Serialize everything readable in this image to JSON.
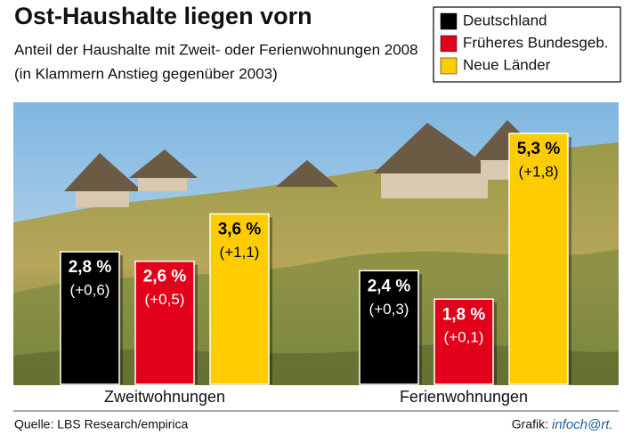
{
  "chart_data": {
    "type": "bar",
    "title": "Ost-Haushalte liegen vorn",
    "subtitle": "Anteil der Haushalte mit Zweit- oder Ferienwohnungen 2008",
    "note": "(in Klammern Anstieg gegenüber 2003)",
    "categories": [
      "Zweitwohnungen",
      "Ferienwohnungen"
    ],
    "series": [
      {
        "name": "Deutschland",
        "color": "#000000",
        "values": [
          2.8,
          2.4
        ],
        "value_labels": [
          "2,8 %",
          "2,4 %"
        ],
        "change_labels": [
          "(+0,6)",
          "(+0,3)"
        ]
      },
      {
        "name": "Früheres Bundesgeb.",
        "color": "#e2001a",
        "values": [
          2.6,
          1.8
        ],
        "value_labels": [
          "2,6 %",
          "1,8 %"
        ],
        "change_labels": [
          "(+0,5)",
          "(+0,1)"
        ]
      },
      {
        "name": "Neue Länder",
        "color": "#ffcc00",
        "values": [
          3.6,
          5.3
        ],
        "value_labels": [
          "3,6 %",
          "5,3 %"
        ],
        "change_labels": [
          "(+1,1)",
          "(+1,8)"
        ]
      }
    ],
    "source": "Quelle: LBS Research/empirica",
    "credit_prefix": "Grafik:",
    "credit": "infoch@rt."
  }
}
